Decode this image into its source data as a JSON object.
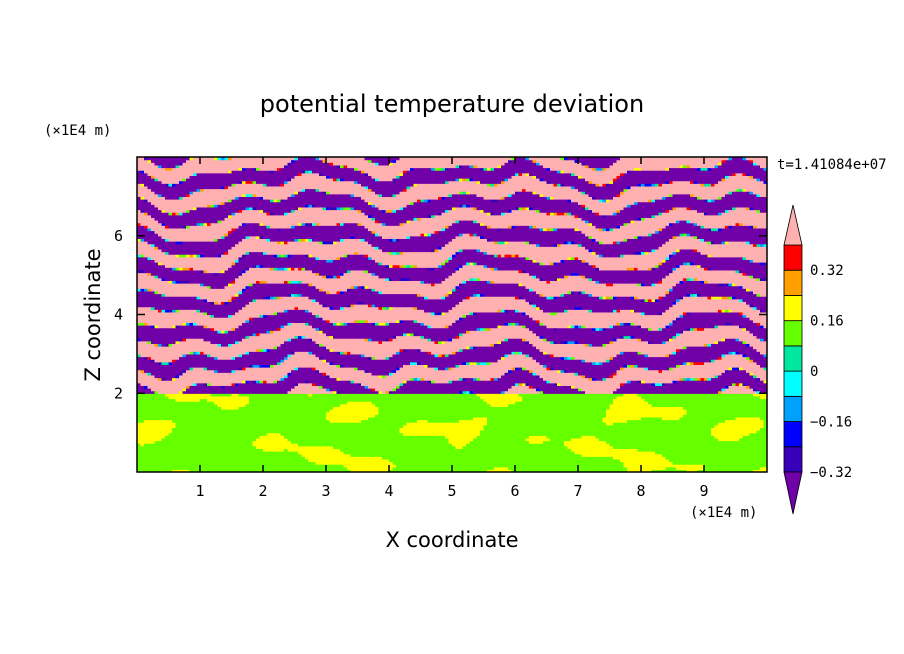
{
  "chart_data": {
    "type": "heatmap",
    "title": "potential temperature deviation",
    "xlabel": "X coordinate",
    "ylabel": "Z coordinate",
    "x_scale_label": "(×1E4 m)",
    "y_scale_label": "(×1E4 m)",
    "time_label": "t=1.41084e+07",
    "xlim": [
      0,
      10
    ],
    "ylim": [
      0,
      8
    ],
    "x_ticks": [
      "1",
      "2",
      "3",
      "4",
      "5",
      "6",
      "7",
      "8",
      "9"
    ],
    "y_ticks": [
      "2",
      "4",
      "6"
    ],
    "colorbar": {
      "labels": [
        "0.32",
        "0.16",
        "0",
        "−0.16",
        "−0.32"
      ],
      "label_values": [
        0.32,
        0.16,
        0,
        -0.16,
        -0.32
      ],
      "levels": [
        -0.4,
        -0.32,
        -0.24,
        -0.16,
        -0.08,
        0,
        0.08,
        0.16,
        0.24,
        0.32,
        0.4
      ],
      "colors": [
        "#7000a8",
        "#3800b8",
        "#0000ff",
        "#00a0ff",
        "#00ffff",
        "#00e8a0",
        "#66ff00",
        "#ffff00",
        "#ffa000",
        "#ff0000",
        "#ffb0b0"
      ],
      "extend": "both"
    },
    "field_description": {
      "lower_layer_top_z": 2.0,
      "lower_layer_values": [
        0,
        0.08
      ],
      "upper_layer_bands": "alternating strong positive (> 0.4) and strong negative (< -0.4) stratified layers with thin mixed interfaces"
    }
  }
}
